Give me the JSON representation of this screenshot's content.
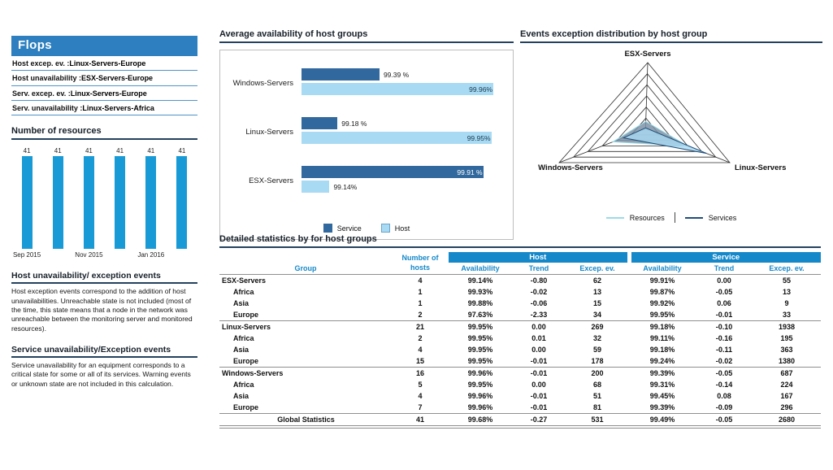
{
  "colors": {
    "accent_blue": "#1588c9",
    "banner_blue": "#2d7fbf",
    "resource_bar_blue": "#189ad6",
    "service_bar_dark": "#31699e",
    "host_bar_light": "#a9daf3",
    "heading_rule": "#24425f",
    "radar_resources_line": "#9adbe8",
    "radar_services_line": "#1f4e79"
  },
  "flops": {
    "title": "Flops",
    "items": [
      {
        "label": "Host excep. ev. :",
        "value": "Linux-Servers-Europe"
      },
      {
        "label": "Host unavailability :",
        "value": "ESX-Servers-Europe"
      },
      {
        "label": "Serv. excep. ev. :",
        "value": "Linux-Servers-Europe"
      },
      {
        "label": "Serv. unavailability :",
        "value": "Linux-Servers-Africa"
      }
    ]
  },
  "left_panel": {
    "host_events_heading": "Host unavailability/ exception events",
    "host_events_text": "Host exception events correspond to the addition of host unavailabilities. Unreachable state is not included (most of the time, this state means that a node in the network was unreachable between the monitoring server and monitored resources).",
    "service_events_heading": "Service unavailability/Exception events",
    "service_events_text": "Service unavailability for an equipment corresponds to a critical state for some or all of its services. Warning events or unknown state are not included in this calculation."
  },
  "chart_data": [
    {
      "type": "bar",
      "title": "Number of resources",
      "values": [
        41,
        41,
        41,
        41,
        41,
        41
      ],
      "tick_labels": [
        {
          "index": 0,
          "label": "Sep 2015"
        },
        {
          "index": 2,
          "label": "Nov 2015"
        },
        {
          "index": 4,
          "label": "Jan 2016"
        }
      ],
      "ylim": [
        0,
        45
      ],
      "grid": false
    },
    {
      "type": "bar",
      "orientation": "horizontal",
      "title": "Average availability of host groups",
      "categories": [
        "Windows-Servers",
        "Linux-Servers",
        "ESX-Servers"
      ],
      "series": [
        {
          "name": "Service",
          "values": [
            99.39,
            99.18,
            99.91
          ],
          "labels": [
            "99.39 %",
            "99.18 %",
            "99.91 %"
          ]
        },
        {
          "name": "Host",
          "values": [
            99.96,
            99.95,
            99.14
          ],
          "labels": [
            "99.96%",
            "99.95%",
            "99.14%"
          ]
        }
      ],
      "xlim": [
        99,
        100
      ],
      "legend_position": "bottom"
    },
    {
      "type": "radar",
      "title": "Events exception distribution by host group",
      "axes": [
        "ESX-Servers",
        "Windows-Servers",
        "Linux-Servers"
      ],
      "series": [
        {
          "name": "Resources",
          "values": [
            62,
            200,
            269
          ]
        },
        {
          "name": "Services",
          "values": [
            55,
            687,
            1938
          ]
        }
      ],
      "normalization": "share_of_series_total",
      "rings": 6,
      "legend_position": "bottom"
    },
    {
      "type": "table",
      "title": "Detailed statistics by for host groups",
      "headers": {
        "group": "Group",
        "hosts_line1": "Number of",
        "hosts_line2": "hosts",
        "host_band": "Host",
        "service_band": "Service",
        "sub": [
          "Availability",
          "Trend",
          "Excep. ev."
        ]
      },
      "rows": [
        {
          "name": "ESX-Servers",
          "level": 0,
          "section_start": false,
          "footer": false,
          "hosts": "4",
          "h_avail": "99.14%",
          "h_trend": "-0.80",
          "h_excep": "62",
          "s_avail": "99.91%",
          "s_trend": "0.00",
          "s_excep": "55"
        },
        {
          "name": "Africa",
          "level": 1,
          "section_start": false,
          "footer": false,
          "hosts": "1",
          "h_avail": "99.93%",
          "h_trend": "-0.02",
          "h_excep": "13",
          "s_avail": "99.87%",
          "s_trend": "-0.05",
          "s_excep": "13"
        },
        {
          "name": "Asia",
          "level": 1,
          "section_start": false,
          "footer": false,
          "hosts": "1",
          "h_avail": "99.88%",
          "h_trend": "-0.06",
          "h_excep": "15",
          "s_avail": "99.92%",
          "s_trend": "0.06",
          "s_excep": "9"
        },
        {
          "name": "Europe",
          "level": 1,
          "section_start": false,
          "footer": false,
          "hosts": "2",
          "h_avail": "97.63%",
          "h_trend": "-2.33",
          "h_excep": "34",
          "s_avail": "99.95%",
          "s_trend": "-0.01",
          "s_excep": "33"
        },
        {
          "name": "Linux-Servers",
          "level": 0,
          "section_start": true,
          "footer": false,
          "hosts": "21",
          "h_avail": "99.95%",
          "h_trend": "0.00",
          "h_excep": "269",
          "s_avail": "99.18%",
          "s_trend": "-0.10",
          "s_excep": "1938"
        },
        {
          "name": "Africa",
          "level": 1,
          "section_start": false,
          "footer": false,
          "hosts": "2",
          "h_avail": "99.95%",
          "h_trend": "0.01",
          "h_excep": "32",
          "s_avail": "99.11%",
          "s_trend": "-0.16",
          "s_excep": "195"
        },
        {
          "name": "Asia",
          "level": 1,
          "section_start": false,
          "footer": false,
          "hosts": "4",
          "h_avail": "99.95%",
          "h_trend": "0.00",
          "h_excep": "59",
          "s_avail": "99.18%",
          "s_trend": "-0.11",
          "s_excep": "363"
        },
        {
          "name": "Europe",
          "level": 1,
          "section_start": false,
          "footer": false,
          "hosts": "15",
          "h_avail": "99.95%",
          "h_trend": "-0.01",
          "h_excep": "178",
          "s_avail": "99.24%",
          "s_trend": "-0.02",
          "s_excep": "1380"
        },
        {
          "name": "Windows-Servers",
          "level": 0,
          "section_start": true,
          "footer": false,
          "hosts": "16",
          "h_avail": "99.96%",
          "h_trend": "-0.01",
          "h_excep": "200",
          "s_avail": "99.39%",
          "s_trend": "-0.05",
          "s_excep": "687"
        },
        {
          "name": "Africa",
          "level": 1,
          "section_start": false,
          "footer": false,
          "hosts": "5",
          "h_avail": "99.95%",
          "h_trend": "0.00",
          "h_excep": "68",
          "s_avail": "99.31%",
          "s_trend": "-0.14",
          "s_excep": "224"
        },
        {
          "name": "Asia",
          "level": 1,
          "section_start": false,
          "footer": false,
          "hosts": "4",
          "h_avail": "99.96%",
          "h_trend": "-0.01",
          "h_excep": "51",
          "s_avail": "99.45%",
          "s_trend": "0.08",
          "s_excep": "167"
        },
        {
          "name": "Europe",
          "level": 1,
          "section_start": false,
          "footer": false,
          "hosts": "7",
          "h_avail": "99.96%",
          "h_trend": "-0.01",
          "h_excep": "81",
          "s_avail": "99.39%",
          "s_trend": "-0.09",
          "s_excep": "296"
        },
        {
          "name": "Global Statistics",
          "level": 0,
          "section_start": false,
          "footer": true,
          "hosts": "41",
          "h_avail": "99.68%",
          "h_trend": "-0.27",
          "h_excep": "531",
          "s_avail": "99.49%",
          "s_trend": "-0.05",
          "s_excep": "2680"
        }
      ]
    }
  ]
}
